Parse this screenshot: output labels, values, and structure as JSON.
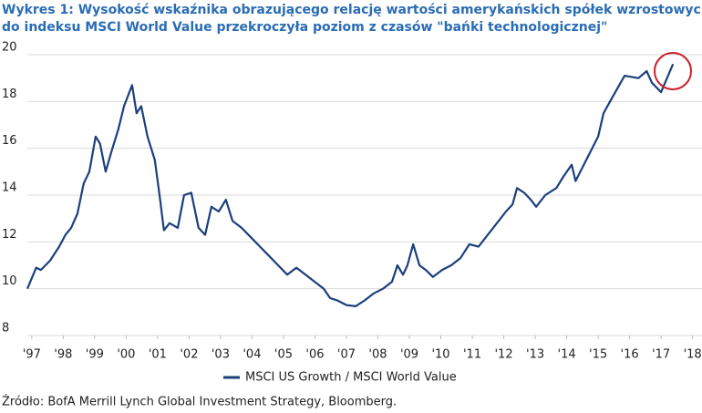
{
  "chart_data": {
    "type": "line",
    "title": [
      "Wykres 1: Wysokość wskaźnika obrazującego relację wartości amerykańskich spółek wzrostowych",
      "do indeksu MSCI World Value przekroczyła poziom z czasów \"bańki technologicznej\""
    ],
    "source": "Źródło: BofA Merrill Lynch Global Investment Strategy, Bloomberg.",
    "x": [
      1996.86,
      1997.14,
      1997.29,
      1997.58,
      1997.87,
      1998.07,
      1998.25,
      1998.45,
      1998.65,
      1998.83,
      1999.03,
      1999.17,
      1999.35,
      1999.52,
      1999.75,
      1999.93,
      2000.19,
      2000.33,
      2000.48,
      2000.68,
      2000.91,
      2001.06,
      2001.2,
      2001.38,
      2001.64,
      2001.84,
      2002.07,
      2002.3,
      2002.51,
      2002.71,
      2002.94,
      2003.17,
      2003.38,
      2003.67,
      2003.96,
      2004.25,
      2004.54,
      2004.83,
      2005.12,
      2005.41,
      2005.7,
      2005.99,
      2006.28,
      2006.48,
      2006.71,
      2007.0,
      2007.29,
      2007.58,
      2007.87,
      2008.16,
      2008.45,
      2008.62,
      2008.8,
      2008.94,
      2009.12,
      2009.32,
      2009.52,
      2009.75,
      2010.04,
      2010.33,
      2010.62,
      2010.91,
      2011.2,
      2011.49,
      2011.78,
      2012.07,
      2012.28,
      2012.42,
      2012.65,
      2012.86,
      2013.03,
      2013.32,
      2013.67,
      2013.9,
      2014.16,
      2014.28,
      2015.0,
      2015.17,
      2015.46,
      2015.84,
      2016.28,
      2016.54,
      2016.71,
      2017.0,
      2017.38
    ],
    "series": [
      {
        "name": "MSCI US Growth / MSCI World Value",
        "color": "#1c3f7c",
        "values": [
          10.0,
          10.9,
          10.8,
          11.2,
          11.8,
          12.3,
          12.6,
          13.2,
          14.5,
          15.0,
          16.5,
          16.2,
          15.0,
          15.8,
          16.8,
          17.8,
          18.7,
          17.5,
          17.8,
          16.5,
          15.5,
          14.0,
          12.5,
          12.8,
          12.6,
          14.0,
          14.1,
          12.6,
          12.3,
          13.5,
          13.3,
          13.8,
          12.9,
          12.6,
          12.2,
          11.8,
          11.4,
          11.0,
          10.6,
          10.9,
          10.6,
          10.3,
          10.0,
          9.6,
          9.5,
          9.3,
          9.25,
          9.5,
          9.8,
          10.0,
          10.3,
          11.0,
          10.6,
          11.0,
          11.9,
          11.0,
          10.8,
          10.5,
          10.8,
          11.0,
          11.3,
          11.9,
          11.8,
          12.3,
          12.8,
          13.3,
          13.6,
          14.3,
          14.1,
          13.8,
          13.5,
          14.0,
          14.3,
          14.8,
          15.3,
          14.6,
          16.5,
          17.5,
          18.2,
          19.1,
          19.0,
          19.3,
          18.8,
          18.4,
          19.6
        ]
      }
    ],
    "xlim": [
      1996.86,
      2018.3
    ],
    "ylim": [
      8,
      20
    ],
    "xticks": [
      {
        "value": 1997,
        "label": "'97"
      },
      {
        "value": 1998,
        "label": "'98"
      },
      {
        "value": 1999,
        "label": "'99"
      },
      {
        "value": 2000,
        "label": "'00"
      },
      {
        "value": 2001,
        "label": "'01"
      },
      {
        "value": 2002,
        "label": "'02"
      },
      {
        "value": 2003,
        "label": "'03"
      },
      {
        "value": 2004,
        "label": "'04"
      },
      {
        "value": 2005,
        "label": "'05"
      },
      {
        "value": 2006,
        "label": "'06"
      },
      {
        "value": 2007,
        "label": "'07"
      },
      {
        "value": 2008,
        "label": "'08"
      },
      {
        "value": 2009,
        "label": "'09"
      },
      {
        "value": 2010,
        "label": "'10"
      },
      {
        "value": 2011,
        "label": "'11"
      },
      {
        "value": 2012,
        "label": "'12"
      },
      {
        "value": 2013,
        "label": "'13"
      },
      {
        "value": 2014,
        "label": "'14"
      },
      {
        "value": 2015,
        "label": "'15"
      },
      {
        "value": 2016,
        "label": "'16"
      },
      {
        "value": 2017,
        "label": "'17"
      },
      {
        "value": 2018,
        "label": "'18"
      }
    ],
    "yticks": [
      8,
      10,
      12,
      14,
      16,
      18,
      20
    ],
    "grid": true,
    "legend": "bottom"
  }
}
